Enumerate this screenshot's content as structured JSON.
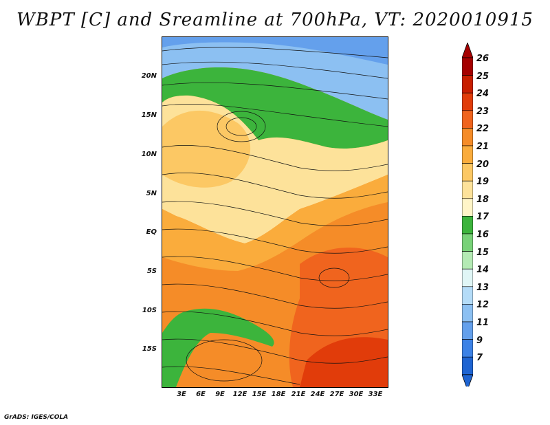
{
  "title": "WBPT [C] and Sreamline at 700hPa, VT: 2020010915",
  "credit": "GrADS: IGES/COLA",
  "lat_labels": [
    "20N",
    "15N",
    "10N",
    "5N",
    "EQ",
    "5S",
    "10S",
    "15S"
  ],
  "lon_labels": [
    "3E",
    "6E",
    "9E",
    "12E",
    "15E",
    "18E",
    "21E",
    "24E",
    "27E",
    "30E",
    "33E"
  ],
  "colorbar": {
    "levels": [
      "26",
      "25",
      "24",
      "23",
      "22",
      "21",
      "20",
      "19",
      "18",
      "17",
      "16",
      "15",
      "14",
      "13",
      "12",
      "11",
      "9",
      "7"
    ],
    "colors": [
      "#a50000",
      "#c81e00",
      "#e13c0a",
      "#f0641e",
      "#f58c28",
      "#faac3c",
      "#fcc864",
      "#fde29a",
      "#fff5c8",
      "#3cb43c",
      "#78d278",
      "#b4eab4",
      "#e0f6f6",
      "#b4dcf8",
      "#8cc0f2",
      "#64a0ec",
      "#3c82e6",
      "#1e64d2"
    ]
  },
  "map": {
    "variable": "Wet-bulb potential temperature",
    "units": "C",
    "level": "700hPa",
    "valid_time": "2020010915"
  }
}
